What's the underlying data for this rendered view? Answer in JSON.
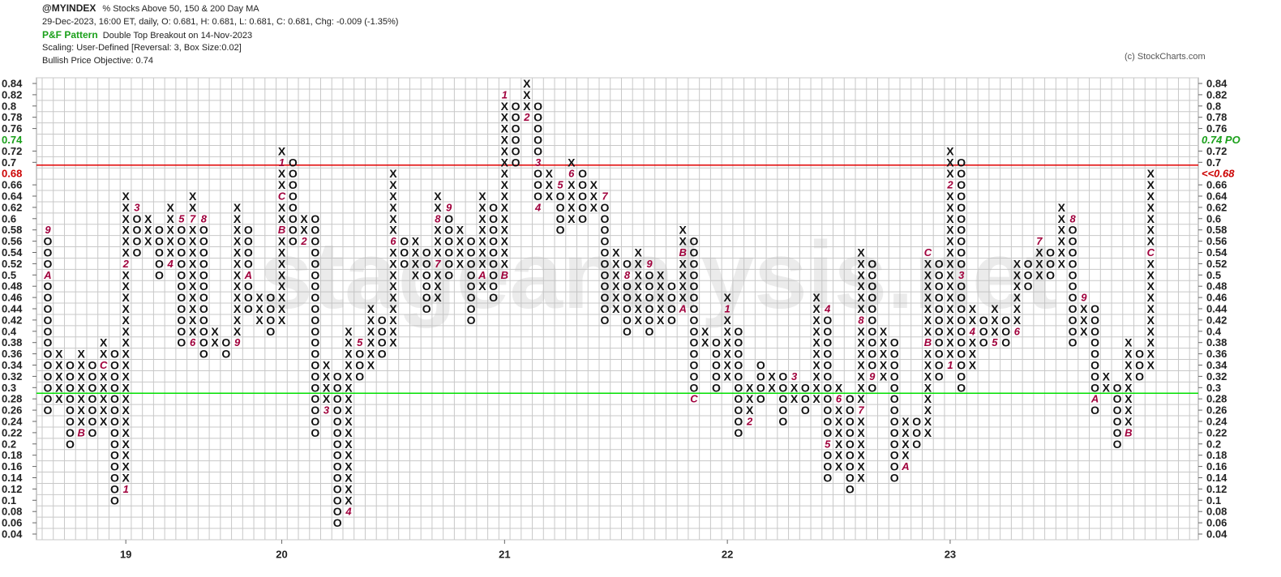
{
  "chart_data": {
    "type": "pnf",
    "symbol": "@MYINDEX",
    "title": "% Stocks Above 50, 150 & 200 Day MA",
    "quote": "29-Dec-2023, 16:00 ET, daily, O: 0.681, H: 0.681, L: 0.681, C: 0.681, Chg: -0.009 (-1.35%)",
    "pattern_label": "P&F Pattern",
    "pattern": "Double Top Breakout on 14-Nov-2023",
    "scaling": "Scaling: User-Defined [Reversal: 3, Box Size:0.02]",
    "objective": "Bullish Price Objective: 0.74",
    "copyright": "(c) StockCharts.com",
    "watermark": "stageanalysis.net",
    "box_size": 0.02,
    "ylim": [
      0.04,
      0.84
    ],
    "yticks": [
      0.04,
      0.06,
      0.08,
      0.1,
      0.12,
      0.14,
      0.16,
      0.18,
      0.2,
      0.22,
      0.24,
      0.26,
      0.28,
      0.3,
      0.32,
      0.34,
      0.36,
      0.38,
      0.4,
      0.42,
      0.44,
      0.46,
      0.48,
      0.5,
      0.52,
      0.54,
      0.56,
      0.58,
      0.6,
      0.62,
      0.64,
      0.66,
      0.7,
      0.72,
      0.76,
      0.78,
      0.8,
      0.82,
      0.84
    ],
    "price_objective": {
      "value": 0.74,
      "right_label": "0.74 PO",
      "color": "#1aa01a"
    },
    "last_price": {
      "value": 0.68,
      "right_label": "<<0.68",
      "color": "#cc0000"
    },
    "lines": [
      {
        "value": 0.695,
        "color": "#e00000"
      },
      {
        "value": 0.29,
        "color": "#00e000"
      }
    ],
    "x_color": "#111111",
    "o_color": "#111111",
    "month_color": "#a0003c",
    "columns": [
      {
        "type": "O",
        "low": 0.26,
        "high": 0.58,
        "marks": [
          {
            "value": 0.58,
            "label": "9"
          },
          {
            "value": 0.5,
            "label": "A"
          }
        ]
      },
      {
        "type": "X",
        "low": 0.28,
        "high": 0.36
      },
      {
        "type": "O",
        "low": 0.2,
        "high": 0.34
      },
      {
        "type": "X",
        "low": 0.22,
        "high": 0.36,
        "marks": [
          {
            "value": 0.22,
            "label": "B"
          }
        ]
      },
      {
        "type": "O",
        "low": 0.22,
        "high": 0.34
      },
      {
        "type": "X",
        "low": 0.24,
        "high": 0.38,
        "marks": [
          {
            "value": 0.34,
            "label": "C"
          }
        ]
      },
      {
        "type": "O",
        "low": 0.1,
        "high": 0.36
      },
      {
        "type": "X",
        "low": 0.12,
        "high": 0.64,
        "year": "19",
        "marks": [
          {
            "value": 0.12,
            "label": "1"
          },
          {
            "value": 0.52,
            "label": "2"
          }
        ]
      },
      {
        "type": "O",
        "low": 0.54,
        "high": 0.62,
        "marks": [
          {
            "value": 0.62,
            "label": "3"
          }
        ]
      },
      {
        "type": "X",
        "low": 0.56,
        "high": 0.6
      },
      {
        "type": "O",
        "low": 0.5,
        "high": 0.58
      },
      {
        "type": "X",
        "low": 0.52,
        "high": 0.62,
        "marks": [
          {
            "value": 0.52,
            "label": "4"
          }
        ]
      },
      {
        "type": "O",
        "low": 0.38,
        "high": 0.6,
        "marks": [
          {
            "value": 0.6,
            "label": "5"
          }
        ]
      },
      {
        "type": "X",
        "low": 0.38,
        "high": 0.64,
        "marks": [
          {
            "value": 0.38,
            "label": "6"
          },
          {
            "value": 0.6,
            "label": "7"
          }
        ]
      },
      {
        "type": "O",
        "low": 0.36,
        "high": 0.6,
        "marks": [
          {
            "value": 0.6,
            "label": "8"
          }
        ]
      },
      {
        "type": "X",
        "low": 0.38,
        "high": 0.4
      },
      {
        "type": "O",
        "low": 0.36,
        "high": 0.38
      },
      {
        "type": "X",
        "low": 0.38,
        "high": 0.62,
        "marks": [
          {
            "value": 0.38,
            "label": "9"
          }
        ]
      },
      {
        "type": "O",
        "low": 0.44,
        "high": 0.58,
        "marks": [
          {
            "value": 0.5,
            "label": "A"
          }
        ]
      },
      {
        "type": "X",
        "low": 0.42,
        "high": 0.46
      },
      {
        "type": "O",
        "low": 0.4,
        "high": 0.46
      },
      {
        "type": "X",
        "low": 0.42,
        "high": 0.72,
        "year": "20",
        "marks": [
          {
            "value": 0.58,
            "label": "B"
          },
          {
            "value": 0.64,
            "label": "C"
          },
          {
            "value": 0.7,
            "label": "1"
          }
        ]
      },
      {
        "type": "O",
        "low": 0.56,
        "high": 0.7
      },
      {
        "type": "X",
        "low": 0.56,
        "high": 0.6,
        "marks": [
          {
            "value": 0.56,
            "label": "2"
          }
        ]
      },
      {
        "type": "O",
        "low": 0.22,
        "high": 0.6
      },
      {
        "type": "X",
        "low": 0.26,
        "high": 0.34,
        "marks": [
          {
            "value": 0.26,
            "label": "3"
          }
        ]
      },
      {
        "type": "O",
        "low": 0.06,
        "high": 0.32
      },
      {
        "type": "X",
        "low": 0.08,
        "high": 0.4,
        "marks": [
          {
            "value": 0.08,
            "label": "4"
          }
        ]
      },
      {
        "type": "O",
        "low": 0.32,
        "high": 0.38,
        "marks": [
          {
            "value": 0.38,
            "label": "5"
          }
        ]
      },
      {
        "type": "X",
        "low": 0.34,
        "high": 0.44
      },
      {
        "type": "O",
        "low": 0.36,
        "high": 0.42
      },
      {
        "type": "X",
        "low": 0.38,
        "high": 0.68,
        "marks": [
          {
            "value": 0.56,
            "label": "6"
          }
        ]
      },
      {
        "type": "O",
        "low": 0.52,
        "high": 0.56
      },
      {
        "type": "X",
        "low": 0.5,
        "high": 0.56
      },
      {
        "type": "O",
        "low": 0.44,
        "high": 0.54
      },
      {
        "type": "X",
        "low": 0.46,
        "high": 0.64,
        "marks": [
          {
            "value": 0.52,
            "label": "7"
          },
          {
            "value": 0.6,
            "label": "8"
          }
        ]
      },
      {
        "type": "O",
        "low": 0.5,
        "high": 0.62,
        "marks": [
          {
            "value": 0.62,
            "label": "9"
          }
        ]
      },
      {
        "type": "X",
        "low": 0.52,
        "high": 0.58
      },
      {
        "type": "O",
        "low": 0.42,
        "high": 0.56
      },
      {
        "type": "X",
        "low": 0.48,
        "high": 0.64,
        "marks": [
          {
            "value": 0.5,
            "label": "A"
          }
        ]
      },
      {
        "type": "O",
        "low": 0.46,
        "high": 0.62
      },
      {
        "type": "X",
        "low": 0.5,
        "high": 0.82,
        "year": "21",
        "marks": [
          {
            "value": 0.5,
            "label": "B"
          },
          {
            "value": 0.82,
            "label": "1"
          }
        ]
      },
      {
        "type": "O",
        "low": 0.7,
        "high": 0.8
      },
      {
        "type": "X",
        "low": 0.78,
        "high": 0.84,
        "marks": [
          {
            "value": 0.78,
            "label": "2"
          }
        ]
      },
      {
        "type": "O",
        "low": 0.62,
        "high": 0.8,
        "marks": [
          {
            "value": 0.7,
            "label": "3"
          },
          {
            "value": 0.62,
            "label": "4"
          }
        ]
      },
      {
        "type": "X",
        "low": 0.64,
        "high": 0.68
      },
      {
        "type": "O",
        "low": 0.58,
        "high": 0.66,
        "marks": [
          {
            "value": 0.66,
            "label": "5"
          }
        ]
      },
      {
        "type": "X",
        "low": 0.6,
        "high": 0.7,
        "marks": [
          {
            "value": 0.68,
            "label": "6"
          }
        ]
      },
      {
        "type": "O",
        "low": 0.6,
        "high": 0.68
      },
      {
        "type": "X",
        "low": 0.62,
        "high": 0.66
      },
      {
        "type": "O",
        "low": 0.42,
        "high": 0.64,
        "marks": [
          {
            "value": 0.64,
            "label": "7"
          }
        ]
      },
      {
        "type": "X",
        "low": 0.44,
        "high": 0.54
      },
      {
        "type": "O",
        "low": 0.4,
        "high": 0.52,
        "marks": [
          {
            "value": 0.5,
            "label": "8"
          }
        ]
      },
      {
        "type": "X",
        "low": 0.42,
        "high": 0.54
      },
      {
        "type": "O",
        "low": 0.4,
        "high": 0.52,
        "marks": [
          {
            "value": 0.52,
            "label": "9"
          }
        ]
      },
      {
        "type": "X",
        "low": 0.42,
        "high": 0.5
      },
      {
        "type": "O",
        "low": 0.42,
        "high": 0.48
      },
      {
        "type": "X",
        "low": 0.44,
        "high": 0.58,
        "marks": [
          {
            "value": 0.44,
            "label": "A"
          },
          {
            "value": 0.54,
            "label": "B"
          }
        ]
      },
      {
        "type": "O",
        "low": 0.28,
        "high": 0.56,
        "marks": [
          {
            "value": 0.28,
            "label": "C"
          }
        ]
      },
      {
        "type": "X",
        "low": 0.38,
        "high": 0.4
      },
      {
        "type": "O",
        "low": 0.3,
        "high": 0.38
      },
      {
        "type": "X",
        "low": 0.32,
        "high": 0.46,
        "year": "22",
        "marks": [
          {
            "value": 0.44,
            "label": "1"
          }
        ]
      },
      {
        "type": "O",
        "low": 0.22,
        "high": 0.4
      },
      {
        "type": "X",
        "low": 0.24,
        "high": 0.3,
        "marks": [
          {
            "value": 0.24,
            "label": "2"
          }
        ]
      },
      {
        "type": "O",
        "low": 0.28,
        "high": 0.34
      },
      {
        "type": "X",
        "low": 0.3,
        "high": 0.32
      },
      {
        "type": "O",
        "low": 0.24,
        "high": 0.32
      },
      {
        "type": "X",
        "low": 0.28,
        "high": 0.32,
        "marks": [
          {
            "value": 0.32,
            "label": "3"
          }
        ]
      },
      {
        "type": "O",
        "low": 0.26,
        "high": 0.3
      },
      {
        "type": "X",
        "low": 0.28,
        "high": 0.46
      },
      {
        "type": "O",
        "low": 0.14,
        "high": 0.44,
        "marks": [
          {
            "value": 0.44,
            "label": "4"
          },
          {
            "value": 0.2,
            "label": "5"
          }
        ]
      },
      {
        "type": "X",
        "low": 0.16,
        "high": 0.3,
        "marks": [
          {
            "value": 0.28,
            "label": "6"
          }
        ]
      },
      {
        "type": "O",
        "low": 0.12,
        "high": 0.28
      },
      {
        "type": "X",
        "low": 0.14,
        "high": 0.54,
        "marks": [
          {
            "value": 0.26,
            "label": "7"
          },
          {
            "value": 0.42,
            "label": "8"
          }
        ]
      },
      {
        "type": "O",
        "low": 0.3,
        "high": 0.52,
        "marks": [
          {
            "value": 0.32,
            "label": "9"
          }
        ]
      },
      {
        "type": "X",
        "low": 0.32,
        "high": 0.4
      },
      {
        "type": "O",
        "low": 0.14,
        "high": 0.38
      },
      {
        "type": "X",
        "low": 0.16,
        "high": 0.24,
        "marks": [
          {
            "value": 0.16,
            "label": "A"
          }
        ]
      },
      {
        "type": "O",
        "low": 0.2,
        "high": 0.24
      },
      {
        "type": "X",
        "low": 0.22,
        "high": 0.54,
        "marks": [
          {
            "value": 0.38,
            "label": "B"
          },
          {
            "value": 0.54,
            "label": "C"
          }
        ]
      },
      {
        "type": "O",
        "low": 0.32,
        "high": 0.52
      },
      {
        "type": "X",
        "low": 0.34,
        "high": 0.72,
        "year": "23",
        "marks": [
          {
            "value": 0.34,
            "label": "1"
          },
          {
            "value": 0.66,
            "label": "2"
          }
        ]
      },
      {
        "type": "O",
        "low": 0.3,
        "high": 0.7,
        "marks": [
          {
            "value": 0.5,
            "label": "3"
          }
        ]
      },
      {
        "type": "X",
        "low": 0.34,
        "high": 0.44,
        "marks": [
          {
            "value": 0.4,
            "label": "4"
          }
        ]
      },
      {
        "type": "O",
        "low": 0.38,
        "high": 0.42
      },
      {
        "type": "X",
        "low": 0.38,
        "high": 0.44,
        "marks": [
          {
            "value": 0.38,
            "label": "5"
          }
        ]
      },
      {
        "type": "O",
        "low": 0.38,
        "high": 0.42
      },
      {
        "type": "X",
        "low": 0.4,
        "high": 0.52,
        "marks": [
          {
            "value": 0.4,
            "label": "6"
          }
        ]
      },
      {
        "type": "O",
        "low": 0.48,
        "high": 0.52
      },
      {
        "type": "X",
        "low": 0.5,
        "high": 0.56,
        "marks": [
          {
            "value": 0.56,
            "label": "7"
          }
        ]
      },
      {
        "type": "O",
        "low": 0.5,
        "high": 0.54
      },
      {
        "type": "X",
        "low": 0.52,
        "high": 0.62
      },
      {
        "type": "O",
        "low": 0.38,
        "high": 0.6,
        "marks": [
          {
            "value": 0.6,
            "label": "8"
          }
        ]
      },
      {
        "type": "X",
        "low": 0.4,
        "high": 0.46,
        "marks": [
          {
            "value": 0.46,
            "label": "9"
          }
        ]
      },
      {
        "type": "O",
        "low": 0.26,
        "high": 0.44,
        "marks": [
          {
            "value": 0.28,
            "label": "A"
          }
        ]
      },
      {
        "type": "X",
        "low": 0.3,
        "high": 0.32
      },
      {
        "type": "O",
        "low": 0.2,
        "high": 0.3
      },
      {
        "type": "X",
        "low": 0.22,
        "high": 0.38,
        "marks": [
          {
            "value": 0.22,
            "label": "B"
          }
        ]
      },
      {
        "type": "O",
        "low": 0.32,
        "high": 0.36
      },
      {
        "type": "X",
        "low": 0.34,
        "high": 0.68,
        "marks": [
          {
            "value": 0.54,
            "label": "C"
          }
        ]
      }
    ]
  }
}
